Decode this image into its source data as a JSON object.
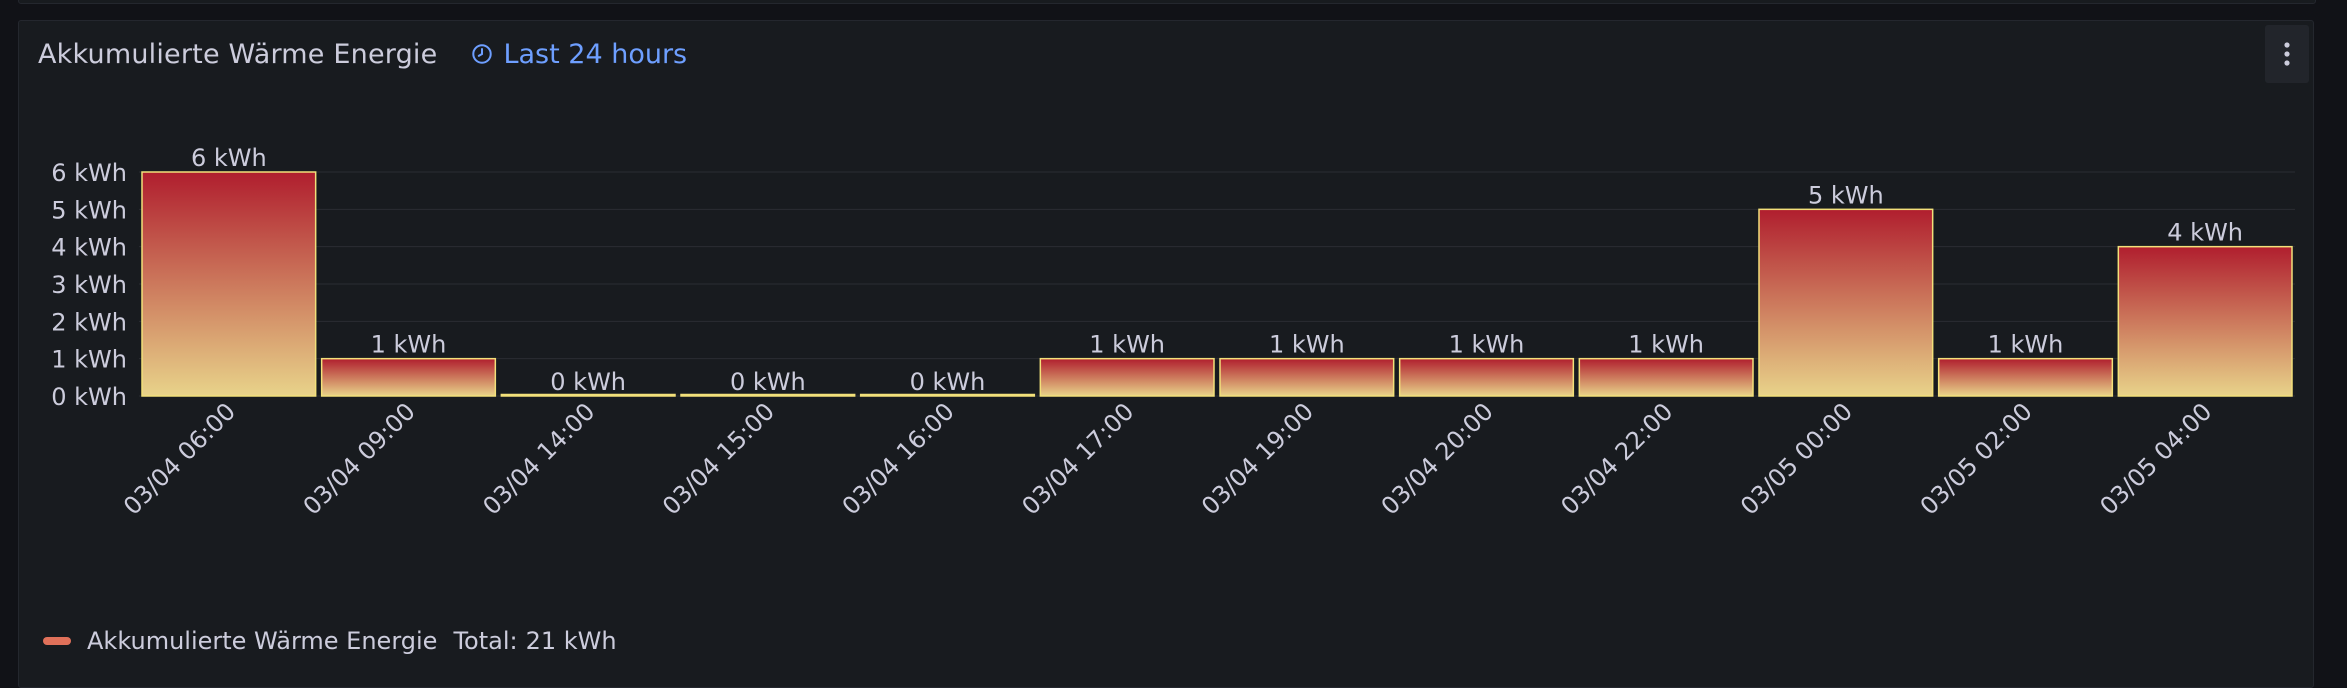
{
  "panel": {
    "title": "Akkumulierte Wärme Energie",
    "time_range": "Last 24 hours",
    "menu_icon": "kebab-menu-icon",
    "clock_icon": "clock-icon"
  },
  "legend": {
    "series_name": "Akkumulierte Wärme Energie",
    "total_label": "Total:",
    "total_value": "21 kWh",
    "color": "#e0715a"
  },
  "colors": {
    "bar_top": "#b01e2e",
    "bar_bottom": "#e8d38a",
    "bar_stroke": "#f2e07a",
    "time_accent": "#6e9fff"
  },
  "chart_data": {
    "type": "bar",
    "title": "Akkumulierte Wärme Energie",
    "unit": "kWh",
    "ylim": [
      0,
      6
    ],
    "yticks": [
      0,
      1,
      2,
      3,
      4,
      5,
      6
    ],
    "ytick_labels": [
      "0 kWh",
      "1 kWh",
      "2 kWh",
      "3 kWh",
      "4 kWh",
      "5 kWh",
      "6 kWh"
    ],
    "grid": true,
    "categories": [
      "03/04 06:00",
      "03/04 09:00",
      "03/04 14:00",
      "03/04 15:00",
      "03/04 16:00",
      "03/04 17:00",
      "03/04 19:00",
      "03/04 20:00",
      "03/04 22:00",
      "03/05 00:00",
      "03/05 02:00",
      "03/05 04:00"
    ],
    "values": [
      6,
      1,
      0,
      0,
      0,
      1,
      1,
      1,
      1,
      5,
      1,
      4
    ],
    "value_labels": [
      "6 kWh",
      "1 kWh",
      "0 kWh",
      "0 kWh",
      "0 kWh",
      "1 kWh",
      "1 kWh",
      "1 kWh",
      "1 kWh",
      "5 kWh",
      "1 kWh",
      "4 kWh"
    ],
    "legend_position": "bottom-left"
  }
}
